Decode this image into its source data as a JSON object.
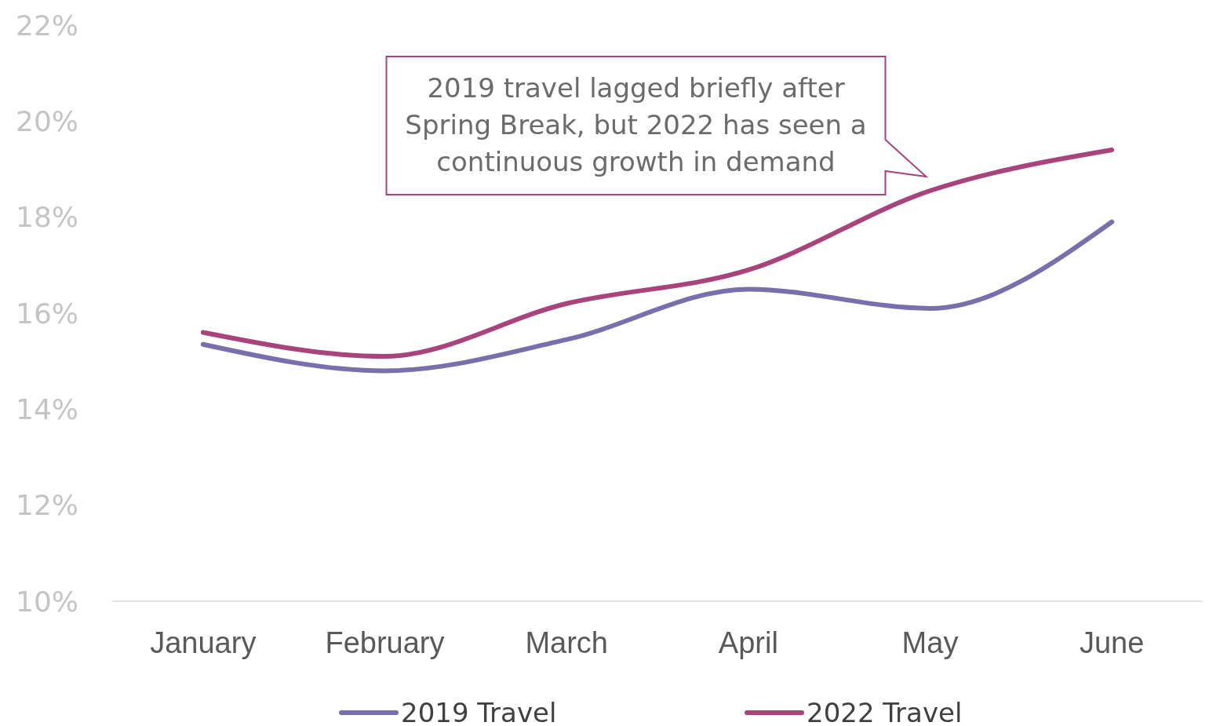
{
  "chart_data": {
    "type": "line",
    "categories": [
      "January",
      "February",
      "March",
      "April",
      "May",
      "June"
    ],
    "series": [
      {
        "name": "2019 Travel",
        "color": "#7a6fad",
        "values": [
          15.35,
          14.8,
          15.45,
          16.5,
          16.1,
          17.9
        ]
      },
      {
        "name": "2022 Travel",
        "color": "#a8437b",
        "values": [
          15.6,
          15.1,
          16.2,
          16.9,
          18.55,
          19.4
        ]
      }
    ],
    "ylim": [
      10,
      22
    ],
    "yticks": [
      {
        "value": 10,
        "label": "10%"
      },
      {
        "value": 12,
        "label": "12%"
      },
      {
        "value": 14,
        "label": "14%"
      },
      {
        "value": 16,
        "label": "16%"
      },
      {
        "value": 18,
        "label": "18%"
      },
      {
        "value": 20,
        "label": "20%"
      },
      {
        "value": 22,
        "label": "22%"
      }
    ],
    "annotations": [
      {
        "text": "2019 travel lagged briefly after Spring Break, but 2022 has seen a continuous growth in demand",
        "x": "May",
        "y": 18.55
      }
    ],
    "legend": "bottom",
    "grid": false,
    "marker": "none",
    "line_style": "solid"
  }
}
